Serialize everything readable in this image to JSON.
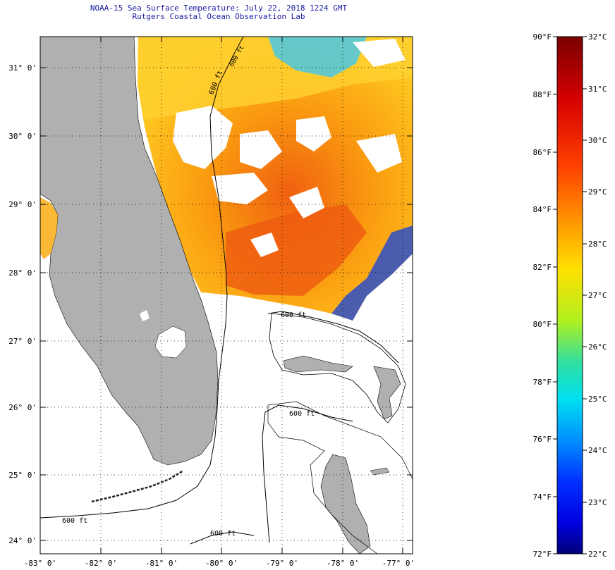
{
  "header": {
    "title_line1": "NOAA-15 Sea Surface Temperature:  July 22, 2018 1224 GMT",
    "title_line2": "Rutgers Coastal Ocean Observation Lab"
  },
  "map": {
    "lat_labels": [
      "31° 0'",
      "30° 0'",
      "29° 0'",
      "28° 0'",
      "27° 0'",
      "26° 0'",
      "25° 0'",
      "24° 0'"
    ],
    "lon_labels": [
      "-83° 0'",
      "-82° 0'",
      "-81° 0'",
      "-80° 0'",
      "-79° 0'",
      "-78° 0'",
      "-77° 0'"
    ],
    "contour_label": "600 ft",
    "contour_label_2": "600 ft",
    "contour_label_3": "600 ft",
    "contour_label_4": "600 ft",
    "contour_label_5": "600 ft",
    "contour_label_6": "600 ft",
    "colors": {
      "land": "#b0b0b0",
      "water_nodata": "#ffffff",
      "title": "#1a1aa0"
    }
  },
  "colorbar": {
    "fahrenheit_labels": [
      "90°F",
      "88°F",
      "86°F",
      "84°F",
      "82°F",
      "80°F",
      "78°F",
      "76°F",
      "74°F",
      "72°F"
    ],
    "celsius_labels": [
      "32°C",
      "31°C",
      "30°C",
      "29°C",
      "28°C",
      "27°C",
      "26°C",
      "25°C",
      "24°C",
      "23°C",
      "22°C"
    ]
  }
}
